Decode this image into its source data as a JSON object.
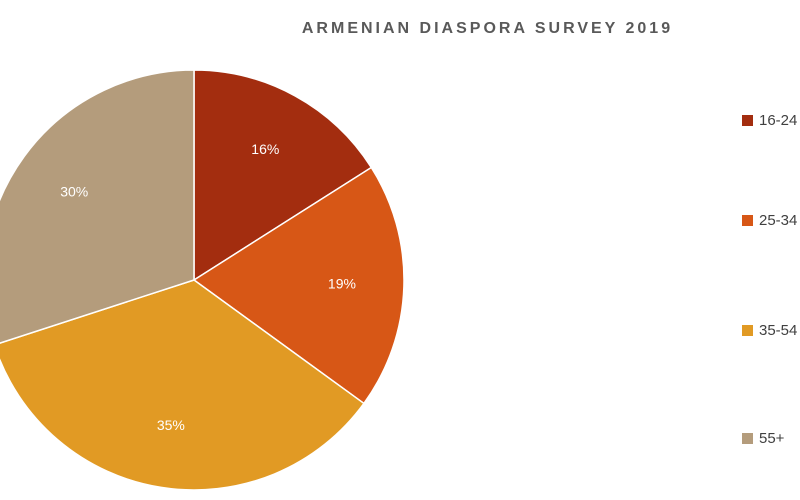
{
  "title": "ARMENIAN DIASPORA SURVEY 2019",
  "chart_data": {
    "type": "pie",
    "title": "ARMENIAN DIASPORA SURVEY 2019",
    "slices": [
      {
        "label": "16-24",
        "value": 16,
        "display": "16%",
        "color": "#A32D0F"
      },
      {
        "label": "25-34",
        "value": 19,
        "display": "19%",
        "color": "#D75716"
      },
      {
        "label": "35-54",
        "value": 35,
        "display": "35%",
        "color": "#E19A24"
      },
      {
        "label": "55+",
        "value": 30,
        "display": "30%",
        "color": "#B49C7C"
      }
    ],
    "start_angle": "12 o'clock",
    "direction": "clockwise",
    "legend_position": "right"
  },
  "legend": [
    {
      "label": "16-24",
      "color": "#A32D0F"
    },
    {
      "label": "25-34",
      "color": "#D75716"
    },
    {
      "label": "35-54",
      "color": "#E19A24"
    },
    {
      "label": "55+",
      "color": "#B49C7C"
    }
  ]
}
